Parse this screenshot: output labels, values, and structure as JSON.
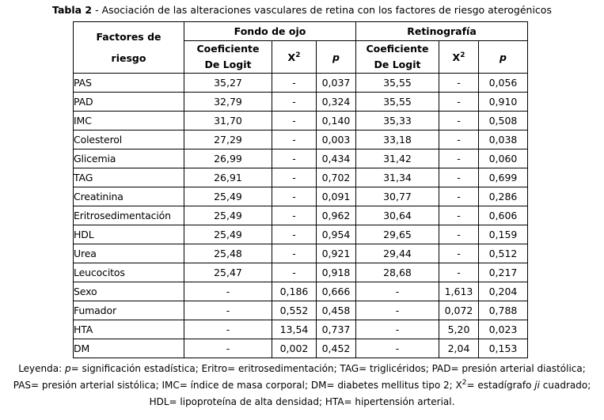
{
  "colors": {
    "background": "#ffffff",
    "text": "#000000",
    "border": "#000000"
  },
  "title": {
    "label": "Tabla 2",
    "rest": "- Asociación de las alteraciones vasculares de retina con los factores de riesgo aterogénicos"
  },
  "table": {
    "row_header_line1": "Factores de",
    "row_header_line2": "riesgo",
    "group1": "Fondo de ojo",
    "group2": "Retinografía",
    "coef_line1": "Coeficiente",
    "coef_line2": "De Logit",
    "chi_base": "X",
    "chi_exp": "2",
    "p_label": "p",
    "rows": [
      {
        "factor": "PAS",
        "values": [
          "35,27",
          "-",
          "0,037",
          "35,55",
          "-",
          "0,056"
        ]
      },
      {
        "factor": "PAD",
        "values": [
          "32,79",
          "-",
          "0,324",
          "35,55",
          "-",
          "0,910"
        ]
      },
      {
        "factor": "IMC",
        "values": [
          "31,70",
          "-",
          "0,140",
          "35,33",
          "-",
          "0,508"
        ]
      },
      {
        "factor": "Colesterol",
        "values": [
          "27,29",
          "-",
          "0,003",
          "33,18",
          "-",
          "0,038"
        ]
      },
      {
        "factor": "Glicemia",
        "values": [
          "26,99",
          "-",
          "0,434",
          "31,42",
          "-",
          "0,060"
        ]
      },
      {
        "factor": "TAG",
        "values": [
          "26,91",
          "-",
          "0,702",
          "31,34",
          "-",
          "0,699"
        ]
      },
      {
        "factor": "Creatinina",
        "values": [
          "25,49",
          "-",
          "0,091",
          "30,77",
          "-",
          "0,286"
        ]
      },
      {
        "factor": "Eritrosedimentación",
        "values": [
          "25,49",
          "-",
          "0,962",
          "30,64",
          "-",
          "0,606"
        ]
      },
      {
        "factor": "HDL",
        "values": [
          "25,49",
          "-",
          "0,954",
          "29,65",
          "-",
          "0,159"
        ]
      },
      {
        "factor": "Urea",
        "values": [
          "25,48",
          "-",
          "0,921",
          "29,44",
          "-",
          "0,512"
        ]
      },
      {
        "factor": "Leucocitos",
        "values": [
          "25,47",
          "-",
          "0,918",
          "28,68",
          "-",
          "0,217"
        ]
      },
      {
        "factor": "Sexo",
        "values": [
          "-",
          "0,186",
          "0,666",
          "-",
          "1,613",
          "0,204"
        ]
      },
      {
        "factor": "Fumador",
        "values": [
          "-",
          "0,552",
          "0,458",
          "-",
          "0,072",
          "0,788"
        ]
      },
      {
        "factor": "HTA",
        "values": [
          "-",
          "13,54",
          "0,737",
          "-",
          "5,20",
          "0,023"
        ]
      },
      {
        "factor": "DM",
        "values": [
          "-",
          "0,002",
          "0,452",
          "-",
          "2,04",
          "0,153"
        ]
      }
    ]
  },
  "legend": {
    "lines": [
      {
        "segments": [
          {
            "t": "Leyenda: "
          },
          {
            "t": "p",
            "i": true
          },
          {
            "t": "= significación estadística; Eritro= eritrosedimentación; TAG= triglicéridos; PAD= presión arterial diastólica;"
          }
        ]
      },
      {
        "segments": [
          {
            "t": "PAS= presión arterial sistólica; IMC= índice de masa corporal; DM= diabetes mellitus tipo 2; X"
          },
          {
            "t": "2",
            "sup": true
          },
          {
            "t": "= estadígrafo "
          },
          {
            "t": "ji",
            "i": true
          },
          {
            "t": " cuadrado;"
          }
        ]
      },
      {
        "segments": [
          {
            "t": "HDL= lipoproteína de alta densidad; HTA= hipertensión arterial."
          }
        ]
      }
    ]
  }
}
